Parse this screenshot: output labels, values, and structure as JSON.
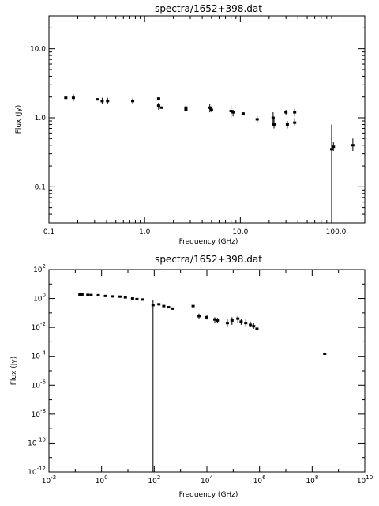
{
  "chart_data": [
    {
      "type": "scatter",
      "title": "spectra/1652+398.dat",
      "xlabel": "Frequency (GHz)",
      "ylabel": "Flux (Jy)",
      "xscale": "log",
      "yscale": "log",
      "xlim": [
        0.1,
        200
      ],
      "ylim": [
        0.03,
        30
      ],
      "xticks": [
        {
          "v": 0.1,
          "label": "0.1"
        },
        {
          "v": 1,
          "label": "1.0"
        },
        {
          "v": 10,
          "label": "10.0"
        },
        {
          "v": 100,
          "label": "100.0"
        }
      ],
      "yticks": [
        {
          "v": 0.1,
          "label": "0.1"
        },
        {
          "v": 1,
          "label": "1.0"
        },
        {
          "v": 10,
          "label": "10.0"
        }
      ],
      "grid": false,
      "points": [
        {
          "x": 0.15,
          "y": 1.95,
          "ylo": 1.8,
          "yhi": 2.1
        },
        {
          "x": 0.18,
          "y": 1.95,
          "ylo": 1.75,
          "yhi": 2.2
        },
        {
          "x": 0.32,
          "y": 1.85,
          "ylo": 1.8,
          "yhi": 1.9
        },
        {
          "x": 0.36,
          "y": 1.75,
          "ylo": 1.6,
          "yhi": 1.95
        },
        {
          "x": 0.41,
          "y": 1.75,
          "ylo": 1.6,
          "yhi": 1.95
        },
        {
          "x": 0.75,
          "y": 1.75,
          "ylo": 1.6,
          "yhi": 1.9
        },
        {
          "x": 1.4,
          "y": 1.9,
          "ylo": 1.85,
          "yhi": 1.95
        },
        {
          "x": 1.4,
          "y": 1.5,
          "ylo": 1.3,
          "yhi": 1.65
        },
        {
          "x": 1.5,
          "y": 1.4,
          "ylo": 1.35,
          "yhi": 1.45
        },
        {
          "x": 2.7,
          "y": 1.4,
          "ylo": 1.25,
          "yhi": 1.6
        },
        {
          "x": 2.7,
          "y": 1.3,
          "ylo": 1.2,
          "yhi": 1.4
        },
        {
          "x": 4.8,
          "y": 1.4,
          "ylo": 1.2,
          "yhi": 1.6
        },
        {
          "x": 5.0,
          "y": 1.3,
          "ylo": 1.2,
          "yhi": 1.45
        },
        {
          "x": 8.0,
          "y": 1.25,
          "ylo": 1.0,
          "yhi": 1.5
        },
        {
          "x": 8.4,
          "y": 1.2,
          "ylo": 1.05,
          "yhi": 1.3
        },
        {
          "x": 10.7,
          "y": 1.15,
          "ylo": 1.1,
          "yhi": 1.2
        },
        {
          "x": 15,
          "y": 0.95,
          "ylo": 0.85,
          "yhi": 1.05
        },
        {
          "x": 22,
          "y": 1.0,
          "ylo": 0.75,
          "yhi": 1.2
        },
        {
          "x": 22.5,
          "y": 0.8,
          "ylo": 0.7,
          "yhi": 0.95
        },
        {
          "x": 30,
          "y": 1.2,
          "ylo": 1.1,
          "yhi": 1.3
        },
        {
          "x": 31,
          "y": 0.8,
          "ylo": 0.7,
          "yhi": 0.9
        },
        {
          "x": 37,
          "y": 1.2,
          "ylo": 1.05,
          "yhi": 1.35
        },
        {
          "x": 37,
          "y": 0.85,
          "ylo": 0.75,
          "yhi": 1.0
        },
        {
          "x": 90,
          "y": 0.35,
          "ylo": 0.03,
          "yhi": 0.8
        },
        {
          "x": 94,
          "y": 0.38,
          "ylo": 0.33,
          "yhi": 0.45
        },
        {
          "x": 150,
          "y": 0.4,
          "ylo": 0.33,
          "yhi": 0.5
        }
      ]
    },
    {
      "type": "scatter",
      "title": "spectra/1652+398.dat",
      "xlabel": "Frequency (GHz)",
      "ylabel": "Flux (Jy)",
      "xscale": "log",
      "yscale": "log",
      "xlim": [
        0.01,
        10000000000
      ],
      "ylim": [
        1e-12,
        100
      ],
      "xticks": [
        {
          "v": 0.01,
          "base": "10",
          "exp": "-2"
        },
        {
          "v": 1,
          "base": "10",
          "exp": "0"
        },
        {
          "v": 100,
          "base": "10",
          "exp": "2"
        },
        {
          "v": 10000,
          "base": "10",
          "exp": "4"
        },
        {
          "v": 1000000,
          "base": "10",
          "exp": "6"
        },
        {
          "v": 100000000,
          "base": "10",
          "exp": "8"
        },
        {
          "v": 10000000000,
          "base": "10",
          "exp": "10"
        }
      ],
      "yticks": [
        {
          "v": 1e-12,
          "base": "10",
          "exp": "-12"
        },
        {
          "v": 1e-10,
          "base": "10",
          "exp": "-10"
        },
        {
          "v": 1e-08,
          "base": "10",
          "exp": "-8"
        },
        {
          "v": 1e-06,
          "base": "10",
          "exp": "-6"
        },
        {
          "v": 0.0001,
          "base": "10",
          "exp": "-4"
        },
        {
          "v": 0.01,
          "base": "10",
          "exp": "-2"
        },
        {
          "v": 1,
          "base": "10",
          "exp": "0"
        },
        {
          "v": 100,
          "base": "10",
          "exp": "2"
        }
      ],
      "grid": false,
      "points": [
        {
          "x": 0.15,
          "y": 1.9,
          "ylo": 1.7,
          "yhi": 2.1
        },
        {
          "x": 0.18,
          "y": 1.9,
          "ylo": 1.7,
          "yhi": 2.1
        },
        {
          "x": 0.3,
          "y": 1.8
        },
        {
          "x": 0.4,
          "y": 1.75
        },
        {
          "x": 0.75,
          "y": 1.7
        },
        {
          "x": 1.4,
          "y": 1.5
        },
        {
          "x": 2.7,
          "y": 1.4
        },
        {
          "x": 5,
          "y": 1.35
        },
        {
          "x": 8,
          "y": 1.2
        },
        {
          "x": 15,
          "y": 1.0
        },
        {
          "x": 22,
          "y": 0.9
        },
        {
          "x": 37,
          "y": 0.85
        },
        {
          "x": 90,
          "y": 0.35,
          "ylo": 1e-12,
          "yhi": 0.8
        },
        {
          "x": 150,
          "y": 0.4
        },
        {
          "x": 230,
          "y": 0.3
        },
        {
          "x": 350,
          "y": 0.25
        },
        {
          "x": 500,
          "y": 0.2
        },
        {
          "x": 3000,
          "y": 0.3
        },
        {
          "x": 5000,
          "y": 0.06,
          "ylo": 0.04,
          "yhi": 0.09
        },
        {
          "x": 10000,
          "y": 0.05,
          "ylo": 0.035,
          "yhi": 0.07
        },
        {
          "x": 20000,
          "y": 0.035,
          "ylo": 0.02,
          "yhi": 0.05
        },
        {
          "x": 25000,
          "y": 0.03,
          "ylo": 0.02,
          "yhi": 0.045
        },
        {
          "x": 60000,
          "y": 0.02,
          "ylo": 0.012,
          "yhi": 0.035
        },
        {
          "x": 90000,
          "y": 0.03,
          "ylo": 0.015,
          "yhi": 0.05
        },
        {
          "x": 150000,
          "y": 0.04,
          "ylo": 0.02,
          "yhi": 0.06
        },
        {
          "x": 200000,
          "y": 0.025,
          "ylo": 0.015,
          "yhi": 0.04
        },
        {
          "x": 300000,
          "y": 0.02,
          "ylo": 0.012,
          "yhi": 0.035
        },
        {
          "x": 450000,
          "y": 0.015,
          "ylo": 0.01,
          "yhi": 0.025
        },
        {
          "x": 600000,
          "y": 0.012,
          "ylo": 0.008,
          "yhi": 0.02
        },
        {
          "x": 800000,
          "y": 0.008,
          "ylo": 0.006,
          "yhi": 0.012
        },
        {
          "x": 300000000,
          "y": 0.00015
        }
      ]
    }
  ]
}
